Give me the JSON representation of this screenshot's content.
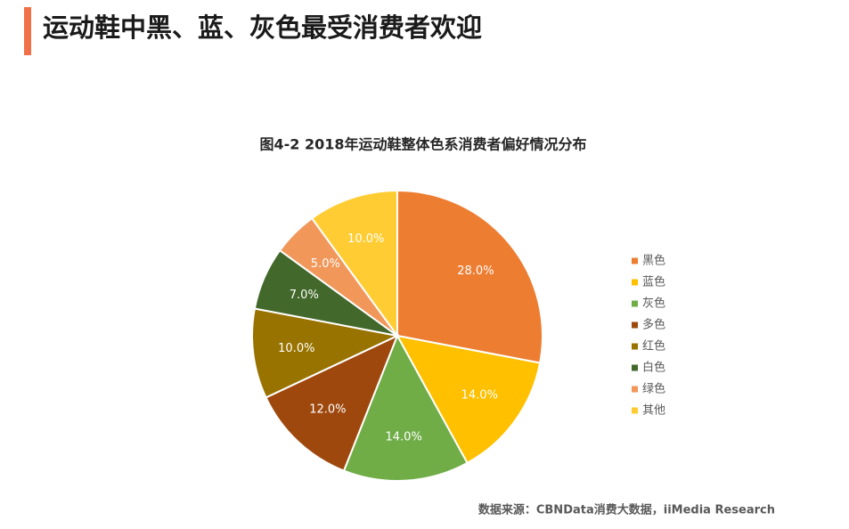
{
  "header": {
    "title": "运动鞋中黑、蓝、灰色最受消费者欢迎"
  },
  "chart_data": {
    "type": "pie",
    "title": "图4-2 2018年运动鞋整体色系消费者偏好情况分布",
    "categories": [
      "黑色",
      "蓝色",
      "灰色",
      "多色",
      "红色",
      "白色",
      "绿色",
      "其他"
    ],
    "values": [
      28,
      14,
      14,
      12,
      10,
      7,
      5,
      10
    ],
    "value_labels": [
      "28.0%",
      "14.0%",
      "14.0%",
      "12.0%",
      "10.0%",
      "7.0%",
      "5.0%",
      "10.0%"
    ],
    "colors": [
      "#ED7D31",
      "#FFC000",
      "#70AD47",
      "#9E480E",
      "#997300",
      "#43682B",
      "#F1975A",
      "#FFCD33"
    ],
    "legend": "right",
    "source": "数据来源：CBNData消费大数据，iiMedia Research"
  }
}
